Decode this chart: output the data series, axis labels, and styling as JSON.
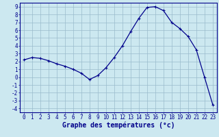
{
  "x": [
    0,
    1,
    2,
    3,
    4,
    5,
    6,
    7,
    8,
    9,
    10,
    11,
    12,
    13,
    14,
    15,
    16,
    17,
    18,
    19,
    20,
    21,
    22,
    23
  ],
  "y": [
    2.2,
    2.5,
    2.4,
    2.1,
    1.7,
    1.4,
    1.0,
    0.5,
    -0.3,
    0.2,
    1.2,
    2.5,
    4.0,
    5.8,
    7.5,
    8.9,
    9.0,
    8.5,
    7.0,
    6.2,
    5.2,
    3.5,
    0.0,
    -3.5
  ],
  "xlabel": "Graphe des températures (°c)",
  "xlim": [
    -0.5,
    23.5
  ],
  "ylim": [
    -4.5,
    9.5
  ],
  "yticks": [
    -4,
    -3,
    -2,
    -1,
    0,
    1,
    2,
    3,
    4,
    5,
    6,
    7,
    8,
    9
  ],
  "xticks": [
    0,
    1,
    2,
    3,
    4,
    5,
    6,
    7,
    8,
    9,
    10,
    11,
    12,
    13,
    14,
    15,
    16,
    17,
    18,
    19,
    20,
    21,
    22,
    23
  ],
  "line_color": "#00008B",
  "bg_color": "#cce8f0",
  "grid_color": "#99bbcc",
  "border_color": "#00008B",
  "xlabel_color": "#00008B",
  "tick_label_color": "#00008B",
  "xlabel_fontsize": 7,
  "tick_fontsize": 5.5
}
